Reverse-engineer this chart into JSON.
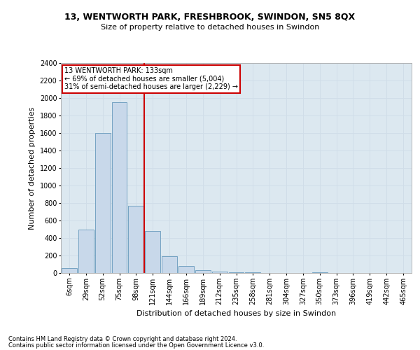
{
  "title1": "13, WENTWORTH PARK, FRESHBROOK, SWINDON, SN5 8QX",
  "title2": "Size of property relative to detached houses in Swindon",
  "xlabel": "Distribution of detached houses by size in Swindon",
  "ylabel": "Number of detached properties",
  "footer1": "Contains HM Land Registry data © Crown copyright and database right 2024.",
  "footer2": "Contains public sector information licensed under the Open Government Licence v3.0.",
  "annotation_line1": "13 WENTWORTH PARK: 133sqm",
  "annotation_line2": "← 69% of detached houses are smaller (5,004)",
  "annotation_line3": "31% of semi-detached houses are larger (2,229) →",
  "bar_color": "#c8d8ea",
  "bar_edge_color": "#6699bb",
  "vline_color": "#cc0000",
  "annotation_box_edgecolor": "#cc0000",
  "grid_color": "#d0dde8",
  "background_color": "#dce8f0",
  "categories": [
    "6sqm",
    "29sqm",
    "52sqm",
    "75sqm",
    "98sqm",
    "121sqm",
    "144sqm",
    "166sqm",
    "189sqm",
    "212sqm",
    "235sqm",
    "258sqm",
    "281sqm",
    "304sqm",
    "327sqm",
    "350sqm",
    "373sqm",
    "396sqm",
    "419sqm",
    "442sqm",
    "465sqm"
  ],
  "values": [
    55,
    500,
    1600,
    1950,
    770,
    480,
    195,
    80,
    30,
    15,
    5,
    5,
    0,
    0,
    0,
    10,
    0,
    0,
    0,
    0,
    0
  ],
  "ylim": [
    0,
    2400
  ],
  "yticks": [
    0,
    200,
    400,
    600,
    800,
    1000,
    1200,
    1400,
    1600,
    1800,
    2000,
    2200,
    2400
  ],
  "vline_x": 4.5,
  "figsize": [
    6.0,
    5.0
  ],
  "dpi": 100,
  "title1_fontsize": 9,
  "title2_fontsize": 8,
  "ylabel_fontsize": 8,
  "xlabel_fontsize": 8,
  "tick_fontsize": 7,
  "footer_fontsize": 6,
  "annotation_fontsize": 7
}
